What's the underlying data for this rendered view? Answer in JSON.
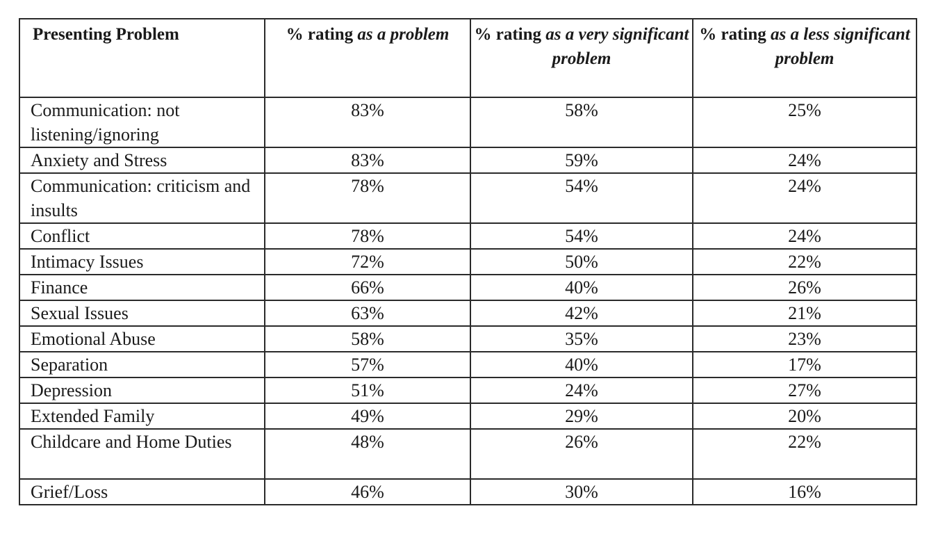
{
  "table": {
    "headers": {
      "col1": "Presenting Problem",
      "col2": {
        "plain": "% rating ",
        "italic": "as a problem"
      },
      "col3": {
        "plain": "% rating ",
        "italic": "as a very significant problem"
      },
      "col4": {
        "plain": "% rating ",
        "italic": "as a less significant problem"
      }
    },
    "rows": [
      {
        "label": "Communication: not listening/ignoring",
        "problem": "83%",
        "very_significant": "58%",
        "less_significant": "25%"
      },
      {
        "label": "Anxiety and Stress",
        "problem": "83%",
        "very_significant": "59%",
        "less_significant": "24%"
      },
      {
        "label": "Communication: criticism and insults",
        "problem": "78%",
        "very_significant": "54%",
        "less_significant": "24%"
      },
      {
        "label": "Conflict",
        "problem": "78%",
        "very_significant": "54%",
        "less_significant": "24%"
      },
      {
        "label": "Intimacy Issues",
        "problem": "72%",
        "very_significant": "50%",
        "less_significant": "22%"
      },
      {
        "label": "Finance",
        "problem": "66%",
        "very_significant": "40%",
        "less_significant": "26%"
      },
      {
        "label": "Sexual Issues",
        "problem": "63%",
        "very_significant": "42%",
        "less_significant": "21%"
      },
      {
        "label": "Emotional Abuse",
        "problem": "58%",
        "very_significant": "35%",
        "less_significant": "23%"
      },
      {
        "label": "Separation",
        "problem": "57%",
        "very_significant": "40%",
        "less_significant": "17%"
      },
      {
        "label": "Depression",
        "problem": "51%",
        "very_significant": "24%",
        "less_significant": "27%"
      },
      {
        "label": "Extended Family",
        "problem": "49%",
        "very_significant": "29%",
        "less_significant": "20%"
      },
      {
        "label": "Childcare and Home Duties",
        "problem": "48%",
        "very_significant": "26%",
        "less_significant": "22%"
      },
      {
        "label": "Grief/Loss",
        "problem": "46%",
        "very_significant": "30%",
        "less_significant": "16%"
      }
    ]
  }
}
